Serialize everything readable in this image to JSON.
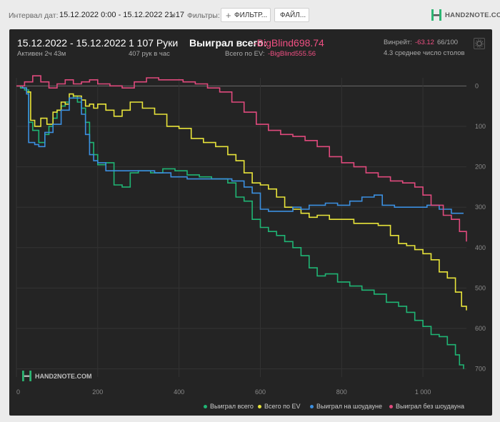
{
  "toolbar": {
    "interval_label": "Интервал дат:",
    "interval_value": "15.12.2022 0:00 - 15.12.2022 21:17",
    "filters_label": "Фильтры:",
    "filter_button": "ФИЛЬТР...",
    "file_button": "ФАЙЛ...",
    "logo_text": "HAND2NOTE.COM"
  },
  "stats": {
    "date_range": "15.12.2022 - 15.12.2022",
    "active": "Активен 2ч 43м",
    "hands": "1 107 Руки",
    "hands_per_hour": "407 рук в час",
    "won_total_label": "Выиграл всего:",
    "won_total_value": "-BigBlind698.74",
    "ev_label": "Всего по EV:",
    "ev_value": "-BigBlind555.56",
    "winrate_label": "Винрейт:",
    "winrate_value": "-63.12",
    "winrate_denominator": "66/100",
    "avg_tables": "4.3 среднее число столов"
  },
  "watermark": "HAND2NOTE.COM",
  "colors": {
    "won": "#1fb574",
    "ev": "#e8e43a",
    "showdown": "#3b8fe0",
    "non_showdown": "#e04a7d",
    "accent_negative": "#ef4f82"
  },
  "chart_data": {
    "type": "line",
    "xlim": [
      0,
      1107
    ],
    "ylim": [
      20,
      -720
    ],
    "y_inverted": true,
    "x_ticks": [
      0,
      200,
      400,
      600,
      800,
      1000
    ],
    "x_tick_labels": [
      "0",
      "200",
      "400",
      "600",
      "800",
      "1 000"
    ],
    "y_ticks": [
      0,
      100,
      200,
      300,
      400,
      500,
      600,
      700
    ],
    "grid": true,
    "legend_position": "bottom-right",
    "series": [
      {
        "name": "Выиграл всего",
        "color_key": "won",
        "points": [
          [
            0,
            0
          ],
          [
            10,
            -5
          ],
          [
            20,
            -10
          ],
          [
            30,
            -90
          ],
          [
            40,
            -110
          ],
          [
            55,
            -140
          ],
          [
            70,
            -120
          ],
          [
            80,
            -100
          ],
          [
            90,
            -80
          ],
          [
            100,
            -60
          ],
          [
            110,
            -50
          ],
          [
            120,
            -40
          ],
          [
            130,
            -30
          ],
          [
            140,
            -25
          ],
          [
            150,
            -40
          ],
          [
            160,
            -55
          ],
          [
            170,
            -90
          ],
          [
            180,
            -140
          ],
          [
            190,
            -170
          ],
          [
            200,
            -195
          ],
          [
            220,
            -190
          ],
          [
            240,
            -245
          ],
          [
            260,
            -250
          ],
          [
            280,
            -215
          ],
          [
            300,
            -210
          ],
          [
            330,
            -215
          ],
          [
            360,
            -205
          ],
          [
            390,
            -210
          ],
          [
            420,
            -220
          ],
          [
            450,
            -225
          ],
          [
            480,
            -230
          ],
          [
            520,
            -240
          ],
          [
            540,
            -275
          ],
          [
            560,
            -285
          ],
          [
            580,
            -330
          ],
          [
            600,
            -350
          ],
          [
            620,
            -360
          ],
          [
            640,
            -370
          ],
          [
            660,
            -385
          ],
          [
            680,
            -400
          ],
          [
            700,
            -420
          ],
          [
            720,
            -450
          ],
          [
            740,
            -470
          ],
          [
            760,
            -465
          ],
          [
            790,
            -485
          ],
          [
            820,
            -495
          ],
          [
            850,
            -505
          ],
          [
            880,
            -515
          ],
          [
            910,
            -535
          ],
          [
            940,
            -545
          ],
          [
            960,
            -560
          ],
          [
            980,
            -580
          ],
          [
            1000,
            -595
          ],
          [
            1020,
            -615
          ],
          [
            1040,
            -620
          ],
          [
            1060,
            -640
          ],
          [
            1080,
            -665
          ],
          [
            1090,
            -690
          ],
          [
            1100,
            -700
          ]
        ]
      },
      {
        "name": "Всего по EV",
        "color_key": "ev",
        "points": [
          [
            0,
            0
          ],
          [
            15,
            -5
          ],
          [
            25,
            -15
          ],
          [
            35,
            -85
          ],
          [
            45,
            -100
          ],
          [
            60,
            -80
          ],
          [
            75,
            -95
          ],
          [
            90,
            -65
          ],
          [
            100,
            -60
          ],
          [
            110,
            -40
          ],
          [
            120,
            -45
          ],
          [
            130,
            -20
          ],
          [
            140,
            -25
          ],
          [
            160,
            -35
          ],
          [
            170,
            -50
          ],
          [
            180,
            -45
          ],
          [
            190,
            -55
          ],
          [
            200,
            -45
          ],
          [
            220,
            -60
          ],
          [
            240,
            -75
          ],
          [
            260,
            -60
          ],
          [
            280,
            -40
          ],
          [
            310,
            -55
          ],
          [
            340,
            -70
          ],
          [
            370,
            -100
          ],
          [
            400,
            -105
          ],
          [
            430,
            -130
          ],
          [
            460,
            -140
          ],
          [
            490,
            -150
          ],
          [
            520,
            -170
          ],
          [
            540,
            -185
          ],
          [
            560,
            -215
          ],
          [
            580,
            -240
          ],
          [
            600,
            -245
          ],
          [
            620,
            -255
          ],
          [
            640,
            -275
          ],
          [
            660,
            -300
          ],
          [
            680,
            -305
          ],
          [
            700,
            -315
          ],
          [
            720,
            -325
          ],
          [
            740,
            -320
          ],
          [
            770,
            -330
          ],
          [
            800,
            -330
          ],
          [
            830,
            -340
          ],
          [
            860,
            -340
          ],
          [
            890,
            -345
          ],
          [
            920,
            -370
          ],
          [
            940,
            -390
          ],
          [
            960,
            -395
          ],
          [
            980,
            -405
          ],
          [
            1000,
            -415
          ],
          [
            1020,
            -430
          ],
          [
            1040,
            -460
          ],
          [
            1060,
            -475
          ],
          [
            1080,
            -510
          ],
          [
            1095,
            -545
          ],
          [
            1107,
            -555
          ]
        ]
      },
      {
        "name": "Выиграл на шоудауне",
        "color_key": "showdown",
        "points": [
          [
            0,
            0
          ],
          [
            15,
            -5
          ],
          [
            25,
            -20
          ],
          [
            30,
            -140
          ],
          [
            45,
            -145
          ],
          [
            55,
            -150
          ],
          [
            70,
            -115
          ],
          [
            90,
            -95
          ],
          [
            110,
            -60
          ],
          [
            130,
            -30
          ],
          [
            150,
            -30
          ],
          [
            160,
            -70
          ],
          [
            170,
            -120
          ],
          [
            180,
            -170
          ],
          [
            190,
            -185
          ],
          [
            200,
            -190
          ],
          [
            220,
            -210
          ],
          [
            260,
            -210
          ],
          [
            300,
            -210
          ],
          [
            340,
            -215
          ],
          [
            380,
            -225
          ],
          [
            420,
            -230
          ],
          [
            460,
            -230
          ],
          [
            500,
            -230
          ],
          [
            530,
            -235
          ],
          [
            560,
            -250
          ],
          [
            580,
            -265
          ],
          [
            600,
            -305
          ],
          [
            620,
            -310
          ],
          [
            650,
            -310
          ],
          [
            680,
            -300
          ],
          [
            700,
            -305
          ],
          [
            720,
            -295
          ],
          [
            760,
            -290
          ],
          [
            790,
            -295
          ],
          [
            820,
            -285
          ],
          [
            850,
            -275
          ],
          [
            880,
            -270
          ],
          [
            900,
            -295
          ],
          [
            930,
            -300
          ],
          [
            960,
            -300
          ],
          [
            990,
            -300
          ],
          [
            1010,
            -295
          ],
          [
            1040,
            -305
          ],
          [
            1070,
            -315
          ],
          [
            1100,
            -315
          ]
        ]
      },
      {
        "name": "Выиграл без шоудауна",
        "color_key": "non_showdown",
        "points": [
          [
            0,
            0
          ],
          [
            20,
            10
          ],
          [
            40,
            25
          ],
          [
            60,
            10
          ],
          [
            80,
            -5
          ],
          [
            100,
            5
          ],
          [
            120,
            15
          ],
          [
            140,
            5
          ],
          [
            160,
            10
          ],
          [
            180,
            15
          ],
          [
            200,
            5
          ],
          [
            230,
            0
          ],
          [
            260,
            -5
          ],
          [
            290,
            10
          ],
          [
            320,
            20
          ],
          [
            350,
            15
          ],
          [
            380,
            15
          ],
          [
            410,
            10
          ],
          [
            440,
            5
          ],
          [
            470,
            -5
          ],
          [
            500,
            -15
          ],
          [
            530,
            -40
          ],
          [
            560,
            -65
          ],
          [
            590,
            -95
          ],
          [
            620,
            -110
          ],
          [
            650,
            -120
          ],
          [
            680,
            -125
          ],
          [
            710,
            -135
          ],
          [
            740,
            -150
          ],
          [
            770,
            -175
          ],
          [
            800,
            -190
          ],
          [
            830,
            -200
          ],
          [
            860,
            -215
          ],
          [
            890,
            -225
          ],
          [
            920,
            -235
          ],
          [
            950,
            -240
          ],
          [
            980,
            -250
          ],
          [
            1000,
            -270
          ],
          [
            1020,
            -295
          ],
          [
            1050,
            -320
          ],
          [
            1070,
            -330
          ],
          [
            1090,
            -360
          ],
          [
            1107,
            -385
          ]
        ]
      }
    ]
  }
}
